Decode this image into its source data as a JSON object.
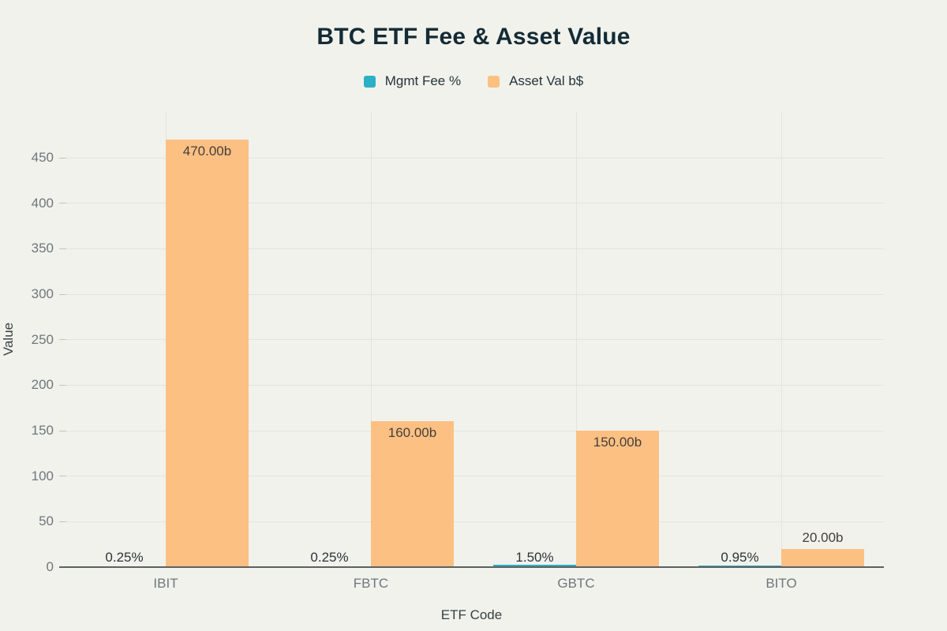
{
  "title": "BTC ETF Fee & Asset Value",
  "legend": [
    {
      "label": "Mgmt Fee %",
      "color": "#2bb0c5"
    },
    {
      "label": "Asset Val b$",
      "color": "#fcc083"
    }
  ],
  "colors": {
    "background": "#f1f2ec",
    "title": "#142b35",
    "teal": "#2bb0c5",
    "orange": "#fcc083",
    "grid": "#e3e4dc",
    "tick": "#c2c3bc",
    "axis_line": "#5d6161",
    "tick_text": "#71767b",
    "value_label_text": "#453f3a",
    "fee_label_text": "#2e3336",
    "axis_title_text": "#3a3f42",
    "legend_text": "#26333a"
  },
  "chart_data": {
    "type": "bar",
    "title": "BTC ETF Fee & Asset Value",
    "categories": [
      "IBIT",
      "FBTC",
      "GBTC",
      "BITO"
    ],
    "series": [
      {
        "name": "Mgmt Fee %",
        "color": "#2bb0c5",
        "values": [
          0.25,
          0.25,
          1.5,
          0.95
        ],
        "labels": [
          "0.25%",
          "0.25%",
          "1.50%",
          "0.95%"
        ]
      },
      {
        "name": "Asset Val b$",
        "color": "#fcc083",
        "values": [
          470,
          160,
          150,
          20
        ],
        "labels": [
          "470.00b",
          "160.00b",
          "150.00b",
          "20.00b"
        ]
      }
    ],
    "xlabel": "ETF Code",
    "ylabel": "Value",
    "ylim": [
      0,
      500
    ],
    "yticks": [
      0,
      50,
      100,
      150,
      200,
      250,
      300,
      350,
      400,
      450
    ],
    "grid": true,
    "legend_position": "top"
  }
}
